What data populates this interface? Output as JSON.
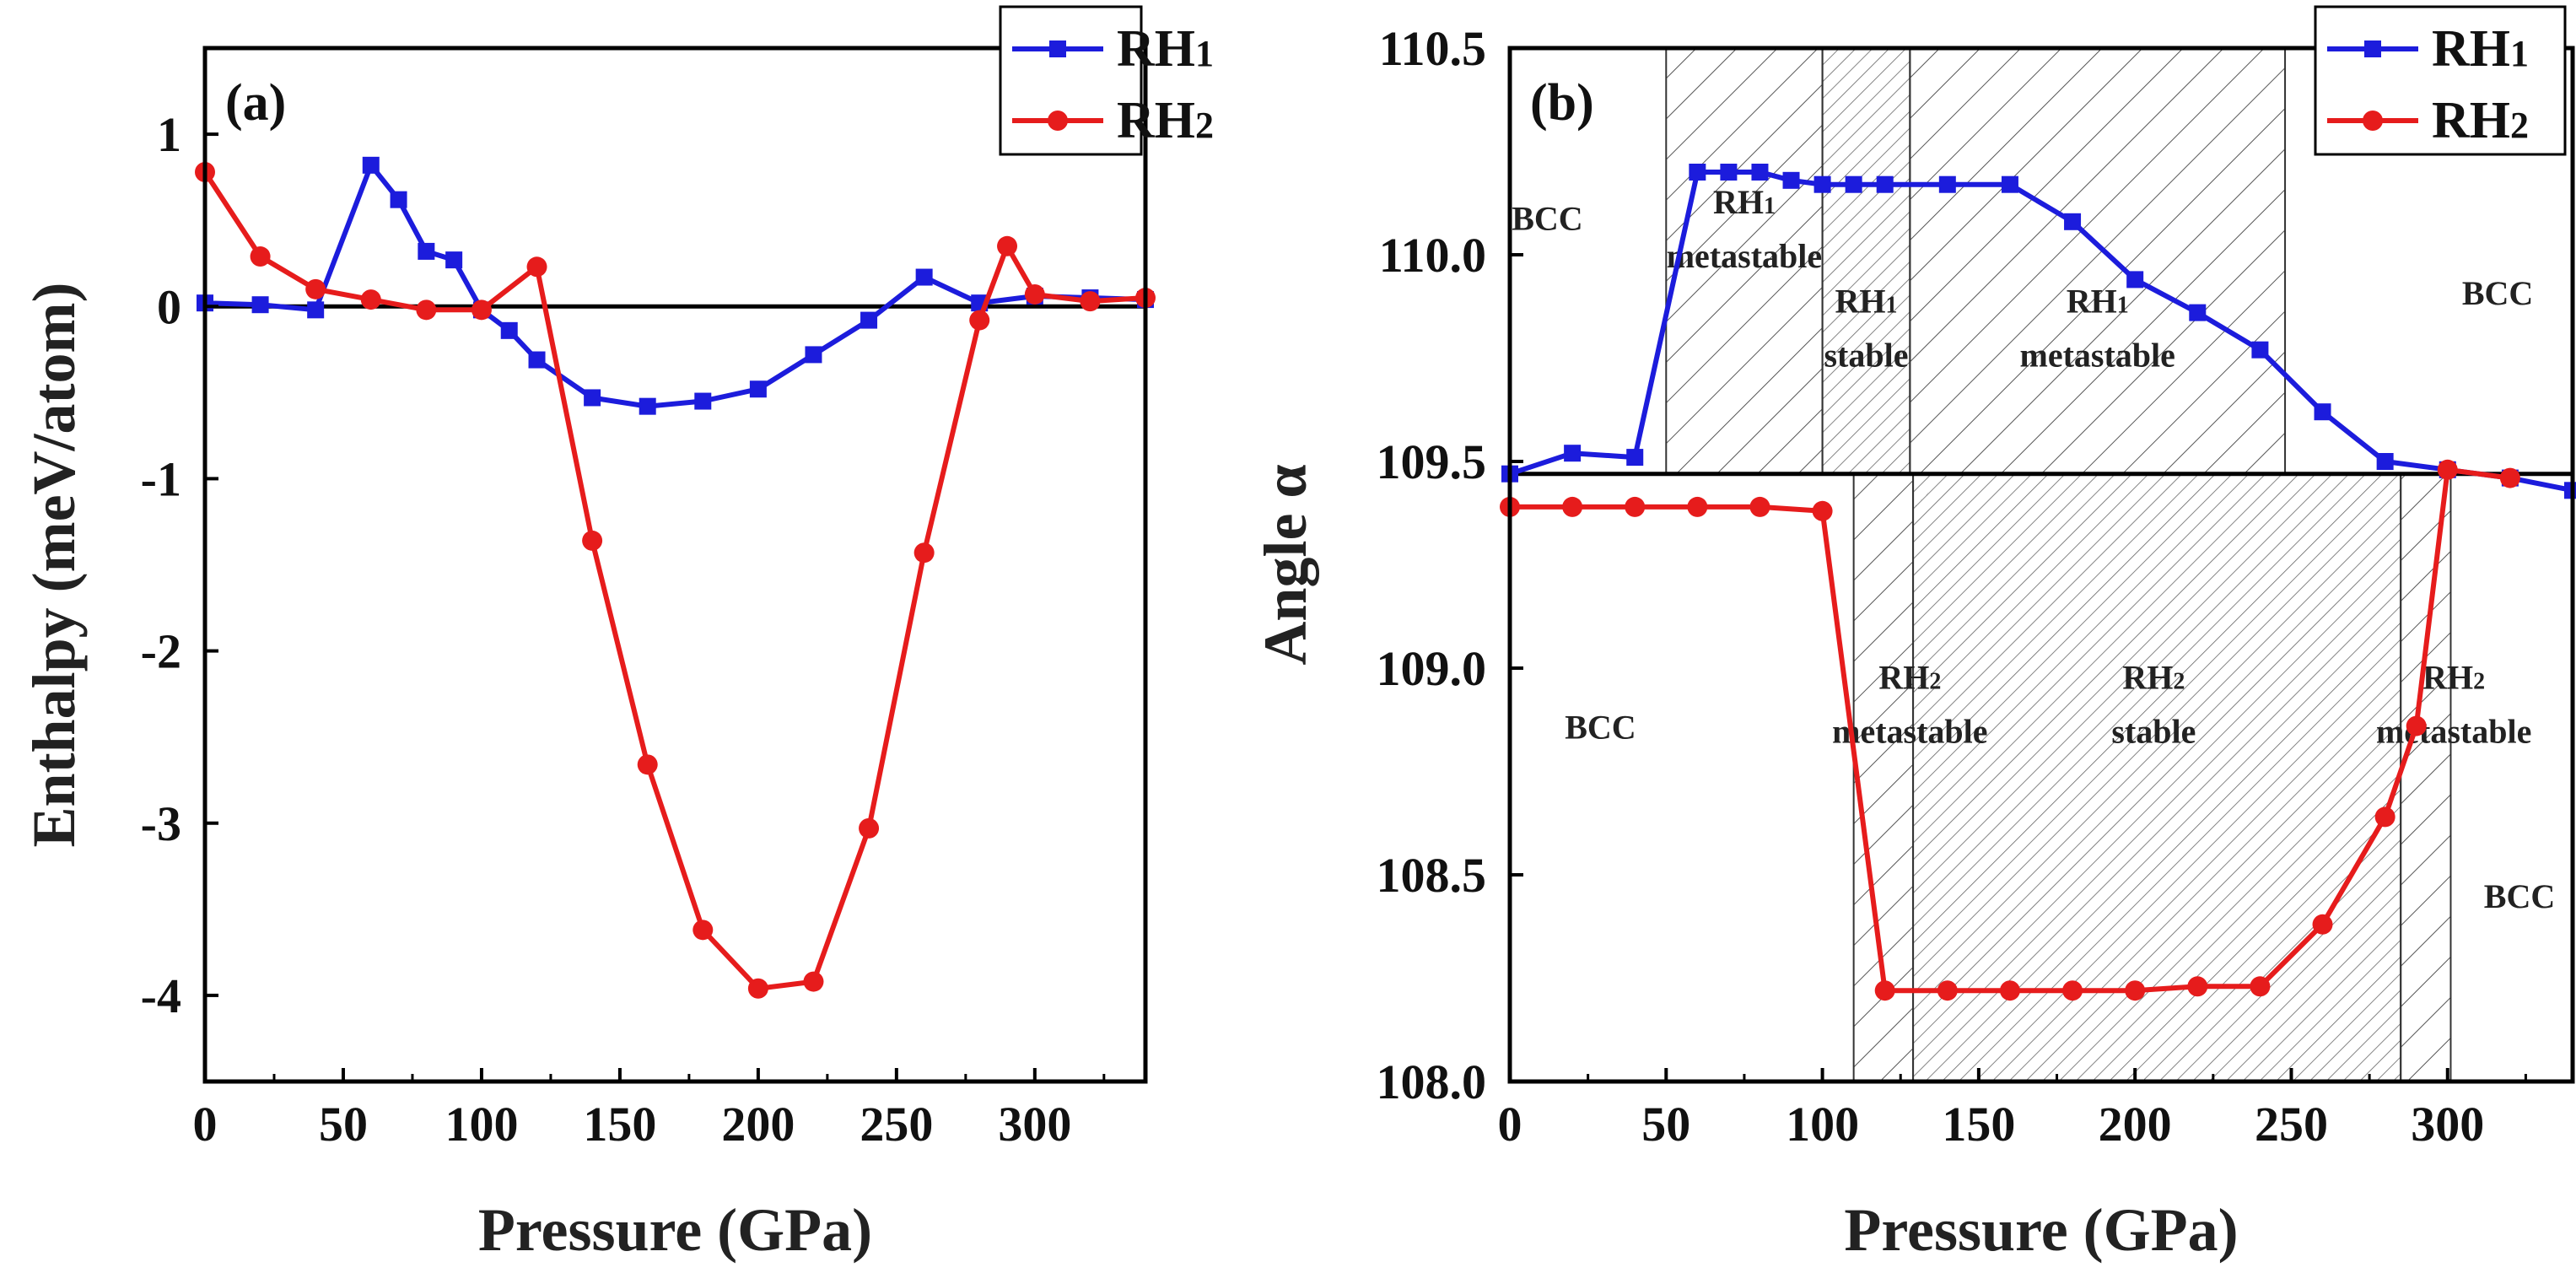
{
  "chart_data": [
    {
      "panel": "(a)",
      "type": "line",
      "xlabel": "Pressure (GPa)",
      "ylabel": "Enthalpy (meV/atom)",
      "xlim": [
        0,
        340
      ],
      "ylim": [
        -4.5,
        1.5
      ],
      "xticks": [
        "0",
        "50",
        "100",
        "150",
        "200",
        "250",
        "300"
      ],
      "xtick_values": [
        0,
        50,
        100,
        150,
        200,
        250,
        300
      ],
      "yticks": [
        "1",
        "0",
        "-1",
        "-2",
        "-3",
        "-4"
      ],
      "ytick_values": [
        1,
        0,
        -1,
        -2,
        -3,
        -4
      ],
      "reference_line_y": 0,
      "legend_position": "top-right",
      "series": [
        {
          "name": "RH1",
          "label_main": "RH",
          "label_sub": "1",
          "color": "#1c1cdc",
          "marker": "square",
          "x": [
            0,
            20,
            40,
            60,
            70,
            80,
            90,
            100,
            110,
            120,
            140,
            160,
            180,
            200,
            220,
            240,
            260,
            280,
            300,
            320,
            340
          ],
          "y": [
            0.02,
            0.01,
            -0.02,
            0.82,
            0.62,
            0.32,
            0.27,
            -0.02,
            -0.14,
            -0.31,
            -0.53,
            -0.58,
            -0.55,
            -0.48,
            -0.28,
            -0.08,
            0.17,
            0.02,
            0.06,
            0.05,
            0.04
          ]
        },
        {
          "name": "RH2",
          "label_main": "RH",
          "label_sub": "2",
          "color": "#e61c1c",
          "marker": "circle",
          "x": [
            0,
            20,
            40,
            60,
            80,
            100,
            120,
            140,
            160,
            180,
            200,
            220,
            240,
            260,
            280,
            290,
            300,
            320,
            340
          ],
          "y": [
            0.78,
            0.29,
            0.1,
            0.04,
            -0.02,
            -0.02,
            0.23,
            -1.36,
            -2.66,
            -3.62,
            -3.96,
            -3.92,
            -3.03,
            -1.43,
            -0.08,
            0.35,
            0.07,
            0.03,
            0.05
          ]
        }
      ]
    },
    {
      "panel": "(b)",
      "type": "line",
      "xlabel": "Pressure (GPa)",
      "ylabel": "Angle α",
      "xlim": [
        0,
        340
      ],
      "ylim": [
        108.0,
        110.5
      ],
      "xticks": [
        "0",
        "50",
        "100",
        "150",
        "200",
        "250",
        "300"
      ],
      "xtick_values": [
        0,
        50,
        100,
        150,
        200,
        250,
        300
      ],
      "yticks": [
        "110.5",
        "110.0",
        "109.5",
        "109.0",
        "108.5",
        "108.0"
      ],
      "ytick_values": [
        110.5,
        110.0,
        109.5,
        109.0,
        108.5,
        108.0
      ],
      "reference_line_y": 109.47,
      "legend_position": "top-right",
      "series": [
        {
          "name": "RH1",
          "label_main": "RH",
          "label_sub": "1",
          "color": "#1c1cdc",
          "marker": "square",
          "x": [
            0,
            20,
            40,
            60,
            70,
            80,
            90,
            100,
            110,
            120,
            140,
            160,
            180,
            200,
            220,
            240,
            260,
            280,
            300,
            320,
            340
          ],
          "y": [
            109.47,
            109.52,
            109.51,
            110.2,
            110.2,
            110.2,
            110.18,
            110.17,
            110.17,
            110.17,
            110.17,
            110.17,
            110.08,
            109.94,
            109.86,
            109.77,
            109.62,
            109.5,
            109.48,
            109.46,
            109.43
          ]
        },
        {
          "name": "RH2",
          "label_main": "RH",
          "label_sub": "2",
          "color": "#e61c1c",
          "marker": "circle",
          "x": [
            0,
            20,
            40,
            60,
            80,
            100,
            120,
            140,
            160,
            180,
            200,
            220,
            240,
            260,
            280,
            290,
            300,
            320
          ],
          "y": [
            109.39,
            109.39,
            109.39,
            109.39,
            109.39,
            109.38,
            108.22,
            108.22,
            108.22,
            108.22,
            108.22,
            108.23,
            108.23,
            108.38,
            108.64,
            108.86,
            109.48,
            109.46
          ]
        }
      ],
      "shaded_regions": [
        {
          "x_range": [
            50,
            100
          ],
          "y_range": [
            109.47,
            110.5
          ],
          "density": "sparse"
        },
        {
          "x_range": [
            100,
            128
          ],
          "y_range": [
            109.47,
            110.5
          ],
          "density": "dense"
        },
        {
          "x_range": [
            128,
            248
          ],
          "y_range": [
            109.47,
            110.5
          ],
          "density": "sparse"
        },
        {
          "x_range": [
            110,
            129
          ],
          "y_range": [
            108.0,
            109.47
          ],
          "density": "sparse"
        },
        {
          "x_range": [
            129,
            285
          ],
          "y_range": [
            108.0,
            109.47
          ],
          "density": "dense"
        },
        {
          "x_range": [
            285,
            301
          ],
          "y_range": [
            108.0,
            109.47
          ],
          "density": "sparse"
        }
      ],
      "region_labels": [
        {
          "lines": [
            {
              "main": "BCC"
            }
          ],
          "at": [
            12,
            110.06
          ]
        },
        {
          "lines": [
            {
              "main": "RH",
              "sub": "1"
            },
            {
              "main": "metastable"
            }
          ],
          "at": [
            75,
            110.1
          ]
        },
        {
          "lines": [
            {
              "main": "RH",
              "sub": "1"
            },
            {
              "main": "stable"
            }
          ],
          "at": [
            114,
            109.86
          ]
        },
        {
          "lines": [
            {
              "main": "RH",
              "sub": "1"
            },
            {
              "main": "metastable"
            }
          ],
          "at": [
            188,
            109.86
          ]
        },
        {
          "lines": [
            {
              "main": "BCC"
            }
          ],
          "at": [
            316,
            109.88
          ]
        },
        {
          "lines": [
            {
              "main": "BCC"
            }
          ],
          "at": [
            29,
            108.83
          ]
        },
        {
          "lines": [
            {
              "main": "RH",
              "sub": "2"
            },
            {
              "main": "metastable"
            }
          ],
          "at": [
            128,
            108.95
          ]
        },
        {
          "lines": [
            {
              "main": "RH",
              "sub": "2"
            },
            {
              "main": "stable"
            }
          ],
          "at": [
            206,
            108.95
          ]
        },
        {
          "lines": [
            {
              "main": "RH",
              "sub": "2"
            },
            {
              "main": "metastable"
            }
          ],
          "at": [
            302,
            108.95
          ]
        },
        {
          "lines": [
            {
              "main": "BCC"
            }
          ],
          "at": [
            323,
            108.42
          ]
        }
      ]
    }
  ]
}
